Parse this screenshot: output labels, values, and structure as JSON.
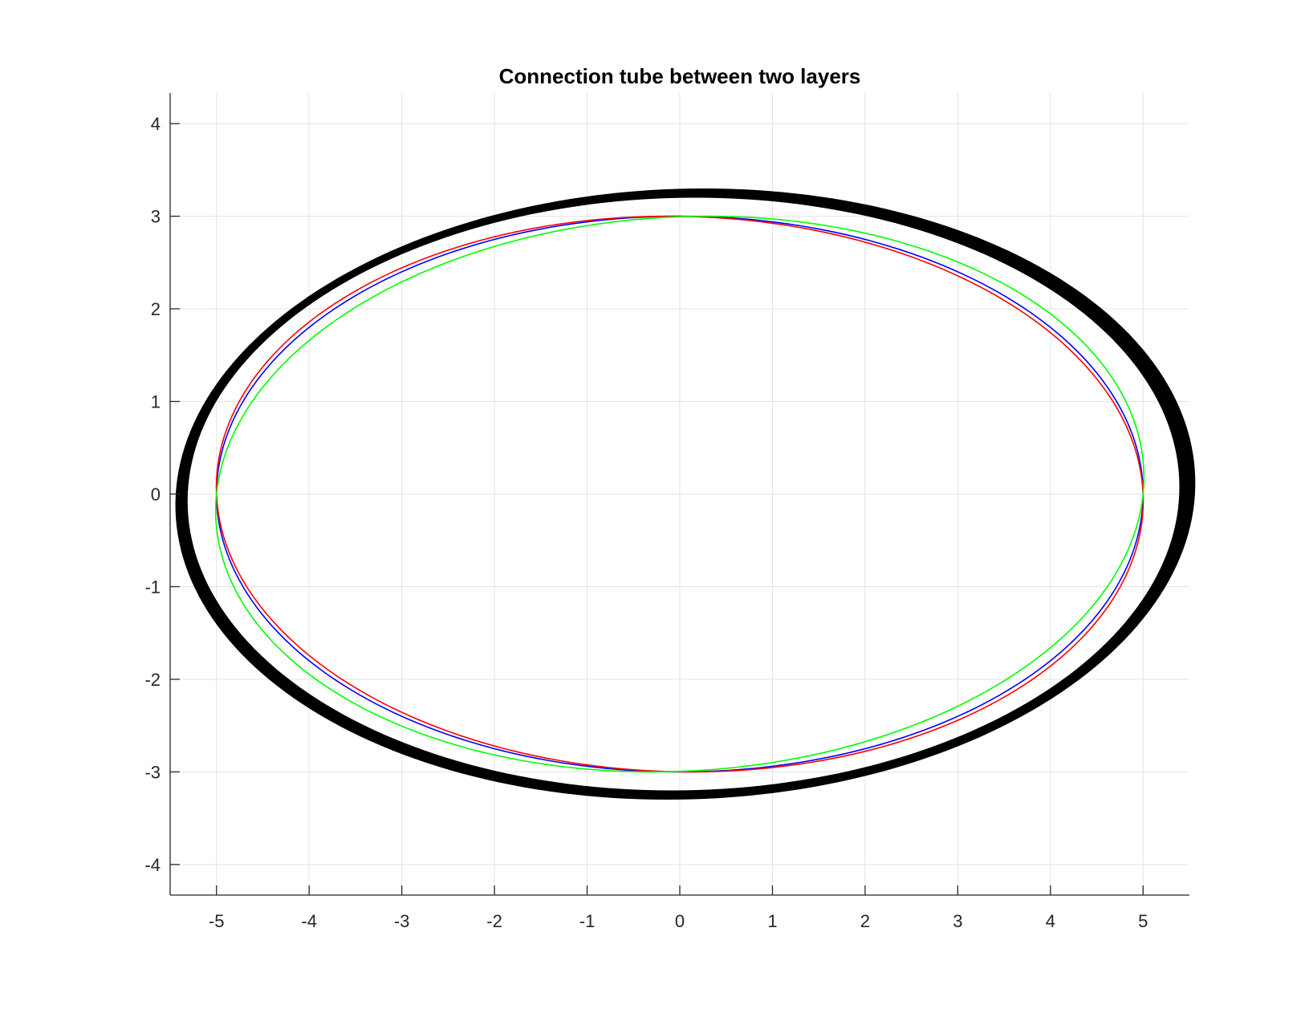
{
  "chart_data": {
    "type": "line",
    "title": "Connection tube between two layers",
    "xlabel": "",
    "ylabel": "",
    "xlim": [
      -5.5,
      5.5
    ],
    "ylim": [
      -4.33,
      4.33
    ],
    "xticks": [
      -5,
      -4,
      -3,
      -2,
      -1,
      0,
      1,
      2,
      3,
      4,
      5
    ],
    "yticks": [
      -4,
      -3,
      -2,
      -1,
      0,
      1,
      2,
      3,
      4
    ],
    "grid": true,
    "legend": "none",
    "tube": {
      "color": "#000000",
      "outer": {
        "rx": 5.5,
        "ry": 3.3,
        "cx": 0.06,
        "cy": 0.0,
        "skew": 0.06
      },
      "inner": {
        "rx": 5.35,
        "ry": 3.2,
        "cx": 0.04,
        "cy": 0.0,
        "skew": 0.04
      }
    },
    "series": [
      {
        "color": "#0000ff",
        "rx": 5.0,
        "ry": 3.0,
        "skew": 0.0
      },
      {
        "color": "#ff0000",
        "rx": 5.0,
        "ry": 3.0,
        "skew": -0.04
      },
      {
        "color": "#00ff00",
        "rx": 5.0,
        "ry": 3.0,
        "skew": 0.1
      }
    ]
  }
}
